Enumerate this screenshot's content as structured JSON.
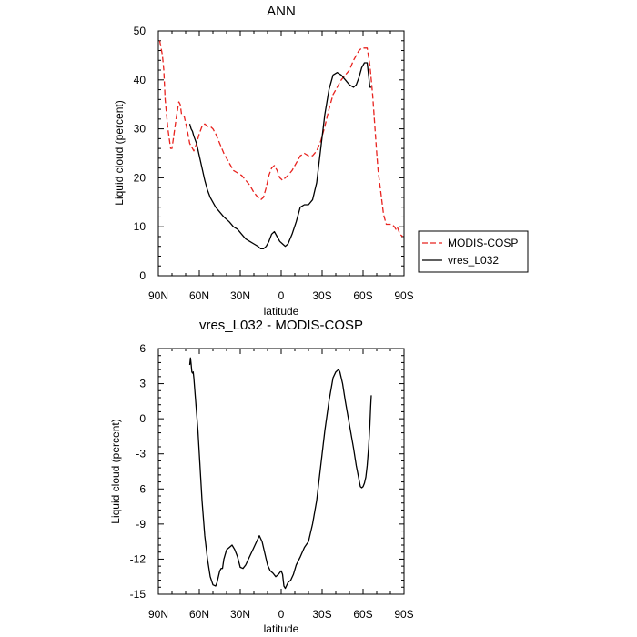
{
  "chart_data": [
    {
      "type": "line",
      "title": "ANN",
      "xlabel": "latitude",
      "ylabel": "Liquid cloud (percent)",
      "xlim": [
        90,
        -90
      ],
      "ylim": [
        0,
        50
      ],
      "x_ticks": [
        {
          "value": 90,
          "label": "90N"
        },
        {
          "value": 60,
          "label": "60N"
        },
        {
          "value": 30,
          "label": "30N"
        },
        {
          "value": 0,
          "label": "0"
        },
        {
          "value": -30,
          "label": "30S"
        },
        {
          "value": -60,
          "label": "60S"
        },
        {
          "value": -90,
          "label": "90S"
        }
      ],
      "y_ticks": [
        0,
        10,
        20,
        30,
        40,
        50
      ],
      "legend": {
        "position": "right",
        "entries": [
          {
            "label": "MODIS-COSP",
            "color": "#e8231f",
            "dash": "dashed"
          },
          {
            "label": "vres_L032",
            "color": "#000000",
            "dash": "solid"
          }
        ]
      },
      "series": [
        {
          "name": "MODIS-COSP",
          "color": "#e8231f",
          "x": [
            89,
            87,
            86,
            85,
            83,
            82,
            81,
            80,
            79,
            77,
            75,
            74,
            73,
            71,
            69,
            67,
            65,
            64,
            62,
            60,
            58,
            56,
            54,
            52,
            50,
            48,
            45,
            42,
            38,
            35,
            32,
            29,
            26,
            23,
            20,
            17,
            15,
            13,
            11,
            9,
            7,
            5,
            3,
            1,
            -1,
            -3,
            -5,
            -8,
            -11,
            -14,
            -17,
            -20,
            -23,
            -26,
            -29,
            -32,
            -35,
            -38,
            -41,
            -44,
            -47,
            -50,
            -53,
            -55,
            -57,
            -59,
            -61,
            -63,
            -65,
            -66,
            -67,
            -68,
            -69,
            -70,
            -71,
            -73,
            -75,
            -77,
            -79,
            -81,
            -83,
            -84,
            -85,
            -87,
            -89
          ],
          "values": [
            48,
            45,
            42,
            36,
            30,
            28,
            26,
            26,
            28,
            32,
            35.5,
            35,
            33,
            32.5,
            30,
            27,
            26,
            25.5,
            27,
            29,
            30.5,
            31,
            30.5,
            30.5,
            30,
            29,
            27,
            25,
            23,
            21.5,
            21,
            20.5,
            19.5,
            18.5,
            17,
            16,
            15.5,
            16,
            18,
            20.5,
            22,
            22.5,
            21.5,
            20,
            19.5,
            20,
            20.5,
            21.5,
            23,
            24.5,
            25,
            24.5,
            24.5,
            25.5,
            27.5,
            30.5,
            34,
            37,
            38.5,
            40,
            41,
            42,
            44,
            45,
            46,
            46.5,
            46.5,
            46.5,
            43,
            40,
            37,
            33,
            29,
            25,
            21.5,
            17,
            12.5,
            10.5,
            10.5,
            10.5,
            10,
            9.5,
            10,
            8.5,
            8
          ]
        },
        {
          "name": "vres_L032",
          "color": "#000000",
          "x": [
            67,
            66,
            65,
            64,
            62,
            60,
            58,
            56,
            54,
            52,
            50,
            48,
            45,
            42,
            38,
            35,
            32,
            29,
            26,
            23,
            20,
            17,
            15,
            13,
            11,
            9,
            7,
            5,
            3,
            1,
            -1,
            -3,
            -5,
            -8,
            -11,
            -14,
            -17,
            -20,
            -23,
            -26,
            -29,
            -32,
            -35,
            -38,
            -41,
            -44,
            -47,
            -50,
            -53,
            -55,
            -57,
            -59,
            -61,
            -63,
            -64,
            -65,
            -65.5,
            -66
          ],
          "values": [
            31,
            30,
            29.5,
            28.5,
            27,
            24.5,
            22,
            19.5,
            17.5,
            16,
            15,
            14,
            13,
            12,
            11,
            10,
            9.5,
            8.5,
            7.5,
            7,
            6.5,
            6,
            5.5,
            5.5,
            6,
            7,
            8.5,
            9,
            8,
            7,
            6.5,
            6,
            6.5,
            8.5,
            11,
            14,
            14.5,
            14.5,
            15.5,
            19,
            26,
            33,
            38,
            41,
            41.5,
            41,
            40,
            39,
            38.5,
            39,
            40.5,
            42.5,
            43.5,
            43.5,
            41,
            38.5,
            38.5,
            38.5
          ]
        }
      ]
    },
    {
      "type": "line",
      "title": "vres_L032 - MODIS-COSP",
      "xlabel": "latitude",
      "ylabel": "Liquid cloud (percent)",
      "xlim": [
        90,
        -90
      ],
      "ylim": [
        -15,
        6
      ],
      "x_ticks": [
        {
          "value": 90,
          "label": "90N"
        },
        {
          "value": 60,
          "label": "60N"
        },
        {
          "value": 30,
          "label": "30N"
        },
        {
          "value": 0,
          "label": "0"
        },
        {
          "value": -30,
          "label": "30S"
        },
        {
          "value": -60,
          "label": "60S"
        },
        {
          "value": -90,
          "label": "90S"
        }
      ],
      "y_ticks": [
        -15,
        -12,
        -9,
        -6,
        -3,
        0,
        3,
        6
      ],
      "series": [
        {
          "name": "vres_L032 - MODIS-COSP",
          "color": "#000000",
          "x": [
            67,
            66.5,
            66,
            65.5,
            65,
            64.5,
            64,
            63,
            62,
            61,
            60,
            59,
            58,
            57,
            56,
            54,
            52,
            50,
            48,
            47,
            46,
            45,
            44,
            43,
            42,
            40,
            38,
            36,
            34,
            32,
            30,
            28,
            26,
            24,
            22,
            20,
            18,
            16,
            14,
            12,
            10,
            8,
            6,
            4,
            2,
            0,
            -1,
            -2,
            -3,
            -5,
            -7,
            -9,
            -11,
            -14,
            -17,
            -20,
            -23,
            -26,
            -29,
            -32,
            -35,
            -38,
            -40,
            -42,
            -43,
            -45,
            -47,
            -50,
            -53,
            -55,
            -57,
            -58,
            -59,
            -60,
            -61,
            -62,
            -63,
            -64,
            -65,
            -65.5,
            -66
          ],
          "values": [
            4.6,
            5.2,
            4.7,
            4.0,
            3.9,
            4.0,
            3.5,
            2.0,
            0.5,
            -1.0,
            -3.0,
            -5.0,
            -7.0,
            -8.5,
            -10.0,
            -12.0,
            -13.5,
            -14.2,
            -14.3,
            -14.0,
            -13.5,
            -13.0,
            -12.8,
            -12.8,
            -12.0,
            -11.2,
            -11.0,
            -10.8,
            -11.2,
            -11.8,
            -12.7,
            -12.8,
            -12.5,
            -12.0,
            -11.5,
            -11.0,
            -10.5,
            -10.0,
            -10.5,
            -11.5,
            -12.5,
            -13.0,
            -13.2,
            -13.5,
            -13.3,
            -13.0,
            -13.3,
            -14.3,
            -14.5,
            -14.0,
            -13.8,
            -13.3,
            -12.5,
            -11.8,
            -11.0,
            -10.5,
            -9.0,
            -7.0,
            -4.0,
            -1.0,
            1.5,
            3.5,
            4.0,
            4.2,
            4.0,
            3.0,
            1.5,
            -0.5,
            -2.5,
            -4.0,
            -5.2,
            -5.8,
            -5.9,
            -5.8,
            -5.5,
            -5.0,
            -4.0,
            -2.5,
            -0.5,
            1.0,
            2.0
          ]
        }
      ]
    }
  ]
}
